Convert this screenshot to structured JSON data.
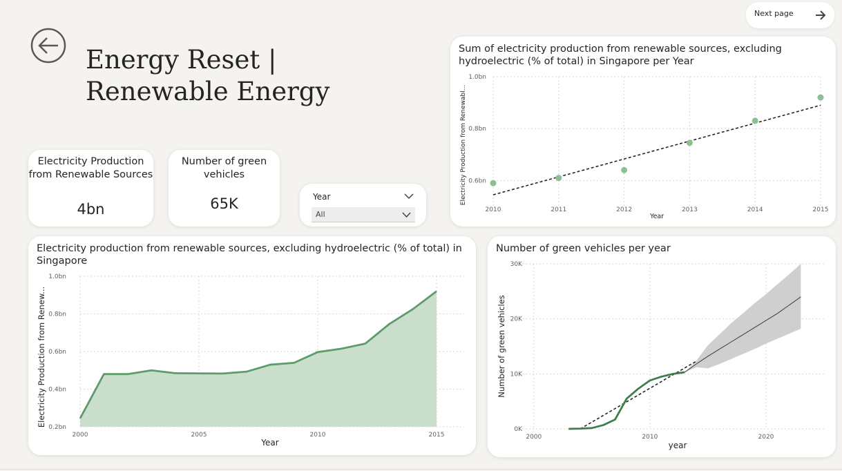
{
  "header": {
    "title_line1": "Energy Reset |",
    "title_line2": "Renewable Energy",
    "next_page_label": "Next page",
    "back_icon": "circle-arrow-left-icon",
    "next_icon": "arrow-right-icon"
  },
  "kpis": [
    {
      "title": "Electricity Production from Renewable Sources",
      "value": "4bn"
    },
    {
      "title": "Number of green vehicles",
      "value": "65K"
    }
  ],
  "slicer": {
    "label": "Year",
    "value": "All"
  },
  "colors": {
    "accent": "#6aa476",
    "line": "#5e9b6a",
    "area": "#c9dfcc",
    "scatter": "#8dbf93",
    "band": "#cfcfcf",
    "background": "#f5f3ef"
  },
  "charts": {
    "scatter": {
      "title": "Sum of electricity production from renewable sources, excluding hydroelectric (% of total) in Singapore per Year"
    },
    "area": {
      "title": "Electricity production from renewable sources, excluding hydroelectric (% of total) in Singapore"
    },
    "forecast": {
      "title": "Number of green vehicles per year"
    }
  },
  "chart_data": [
    {
      "type": "scatter",
      "title": "Sum of electricity production from renewable sources, excluding hydroelectric (% of total) in Singapore per Year",
      "xlabel": "Year",
      "ylabel": "Electricity Production from Renewabl...",
      "x": [
        2010,
        2011,
        2012,
        2013,
        2014,
        2015
      ],
      "y": [
        0.59,
        0.61,
        0.64,
        0.745,
        0.83,
        0.92
      ],
      "xlim": [
        2010,
        2015
      ],
      "ylim": [
        0.5,
        1.0
      ],
      "xticks": [
        "2010",
        "2011",
        "2012",
        "2013",
        "2014",
        "2015"
      ],
      "yticks": [
        {
          "v": 1.0,
          "label": "1.0bn"
        },
        {
          "v": 0.8,
          "label": "0.8bn"
        },
        {
          "v": 0.6,
          "label": "0.6bn"
        }
      ],
      "trendline": {
        "x": [
          2010,
          2015
        ],
        "y": [
          0.545,
          0.89
        ]
      },
      "grid": true
    },
    {
      "type": "area",
      "title": "Electricity production from renewable sources, excluding hydroelectric (% of total) in Singapore",
      "xlabel": "Year",
      "ylabel": "Electricity Production from Renew...",
      "x": [
        2000,
        2001,
        2002,
        2003,
        2004,
        2005,
        2006,
        2007,
        2008,
        2009,
        2010,
        2011,
        2012,
        2013,
        2014,
        2015
      ],
      "y": [
        0.245,
        0.48,
        0.48,
        0.5,
        0.485,
        0.484,
        0.483,
        0.493,
        0.53,
        0.54,
        0.597,
        0.615,
        0.642,
        0.745,
        0.825,
        0.92
      ],
      "xlim": [
        2000,
        2015
      ],
      "ylim": [
        0.2,
        1.0
      ],
      "xticks": [
        "2000",
        "2005",
        "2010",
        "2015"
      ],
      "yticks": [
        {
          "v": 1.0,
          "label": "1.0bn"
        },
        {
          "v": 0.8,
          "label": "0.8bn"
        },
        {
          "v": 0.6,
          "label": "0.6bn"
        },
        {
          "v": 0.4,
          "label": "0.4bn"
        },
        {
          "v": 0.2,
          "label": "0.2bn"
        }
      ],
      "grid": true
    },
    {
      "type": "line",
      "title": "Number of green vehicles per year",
      "xlabel": "year",
      "ylabel": "Number of green vehicles",
      "x": [
        2003,
        2004,
        2005,
        2006,
        2007,
        2008,
        2009,
        2010,
        2011,
        2012,
        2013
      ],
      "y": [
        0,
        50,
        150,
        700,
        1700,
        5500,
        7300,
        8800,
        9500,
        10000,
        10300
      ],
      "trendline": {
        "x": [
          2004,
          2014
        ],
        "y": [
          0,
          12300
        ]
      },
      "forecast": {
        "x": [
          2013,
          2014,
          2015,
          2016,
          2017,
          2018,
          2019,
          2020,
          2021,
          2022,
          2023
        ],
        "y": [
          10300,
          11800,
          13200,
          14500,
          15800,
          17100,
          18400,
          19700,
          21000,
          22500,
          24000
        ],
        "upper": [
          10300,
          12400,
          15200,
          17200,
          19200,
          21000,
          22800,
          24500,
          26300,
          28100,
          30000
        ],
        "lower": [
          10300,
          11200,
          11000,
          11800,
          12700,
          13600,
          14500,
          15500,
          16400,
          17300,
          18200
        ]
      },
      "xlim": [
        1999,
        2025
      ],
      "ylim": [
        0,
        30000
      ],
      "xticks": [
        "2000",
        "2010",
        "2020"
      ],
      "yticks": [
        {
          "v": 30000,
          "label": "30K"
        },
        {
          "v": 20000,
          "label": "20K"
        },
        {
          "v": 10000,
          "label": "10K"
        },
        {
          "v": 0,
          "label": "0K"
        }
      ],
      "grid": true
    }
  ]
}
